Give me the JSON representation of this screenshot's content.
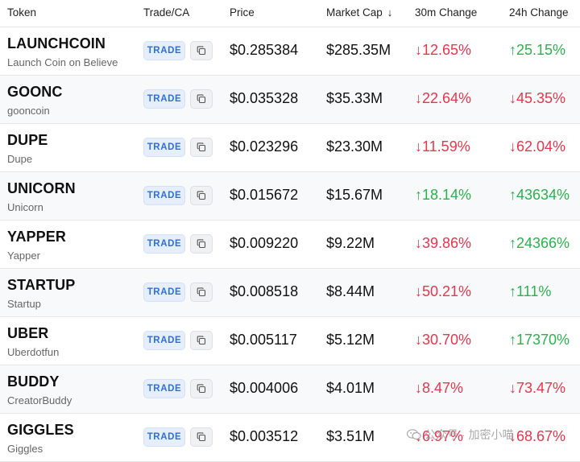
{
  "header": {
    "token": "Token",
    "trade_ca": "Trade/CA",
    "price": "Price",
    "market_cap": "Market Cap",
    "sort_arrow": "↓",
    "change_30m": "30m Change",
    "change_24h": "24h Change"
  },
  "trade_label": "TRADE",
  "colors": {
    "up": "#2bb24c",
    "down": "#e8364c",
    "trade_accent": "#2f6fd8"
  },
  "rows": [
    {
      "symbol": "LAUNCHCOIN",
      "name": "Launch Coin on Believe",
      "price": "$0.285384",
      "market_cap": "$285.35M",
      "change_30m": "↓12.65%",
      "dir_30m": "down",
      "change_24h": "↑25.15%",
      "dir_24h": "up"
    },
    {
      "symbol": "GOONC",
      "name": "gooncoin",
      "price": "$0.035328",
      "market_cap": "$35.33M",
      "change_30m": "↓22.64%",
      "dir_30m": "down",
      "change_24h": "↓45.35%",
      "dir_24h": "down"
    },
    {
      "symbol": "DUPE",
      "name": "Dupe",
      "price": "$0.023296",
      "market_cap": "$23.30M",
      "change_30m": "↓11.59%",
      "dir_30m": "down",
      "change_24h": "↓62.04%",
      "dir_24h": "down"
    },
    {
      "symbol": "UNICORN",
      "name": "Unicorn",
      "price": "$0.015672",
      "market_cap": "$15.67M",
      "change_30m": "↑18.14%",
      "dir_30m": "up",
      "change_24h": "↑43634%",
      "dir_24h": "up"
    },
    {
      "symbol": "YAPPER",
      "name": "Yapper",
      "price": "$0.009220",
      "market_cap": "$9.22M",
      "change_30m": "↓39.86%",
      "dir_30m": "down",
      "change_24h": "↑24366%",
      "dir_24h": "up"
    },
    {
      "symbol": "STARTUP",
      "name": "Startup",
      "price": "$0.008518",
      "market_cap": "$8.44M",
      "change_30m": "↓50.21%",
      "dir_30m": "down",
      "change_24h": "↑111%",
      "dir_24h": "up"
    },
    {
      "symbol": "UBER",
      "name": "Uberdotfun",
      "price": "$0.005117",
      "market_cap": "$5.12M",
      "change_30m": "↓30.70%",
      "dir_30m": "down",
      "change_24h": "↑17370%",
      "dir_24h": "up"
    },
    {
      "symbol": "BUDDY",
      "name": "CreatorBuddy",
      "price": "$0.004006",
      "market_cap": "$4.01M",
      "change_30m": "↓8.47%",
      "dir_30m": "down",
      "change_24h": "↓73.47%",
      "dir_24h": "down"
    },
    {
      "symbol": "GIGGLES",
      "name": "Giggles",
      "price": "$0.003512",
      "market_cap": "$3.51M",
      "change_30m": "↓6.97%",
      "dir_30m": "down",
      "change_24h": "↓68.67%",
      "dir_24h": "down"
    }
  ],
  "watermark": {
    "text": "公众号 · 加密小喵",
    "icon": "wechat-icon"
  }
}
